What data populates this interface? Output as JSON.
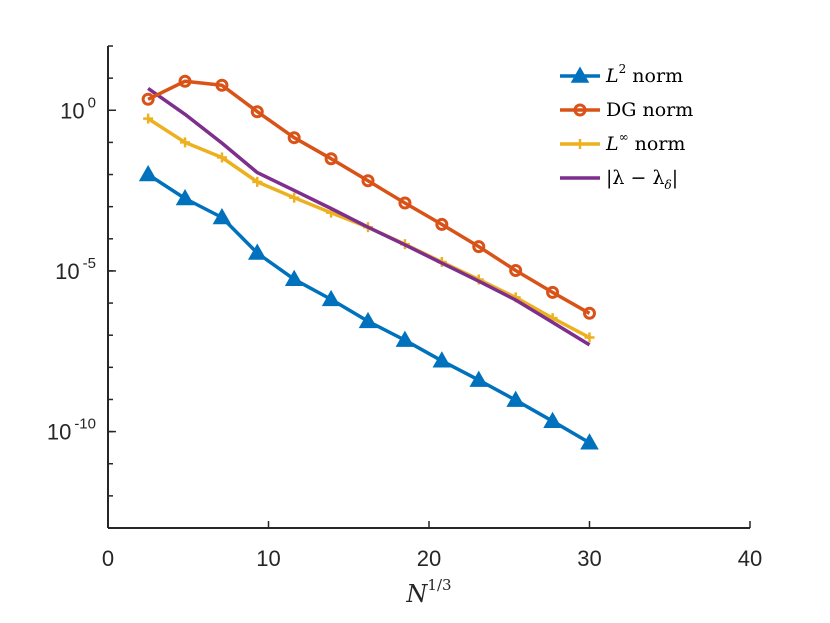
{
  "chart_data": {
    "type": "line",
    "xlabel": "N^{1/3}",
    "xlabel_parts": {
      "base": "N",
      "exponent": "1/3"
    },
    "ylabel": "",
    "yscale": "log",
    "xlim": [
      0,
      40
    ],
    "ylim": [
      1e-13,
      100.0
    ],
    "x_ticks": [
      0,
      10,
      20,
      30,
      40
    ],
    "y_ticks": [
      {
        "value": 1,
        "base": "10",
        "exponent": "0"
      },
      {
        "value": 1e-05,
        "base": "10",
        "exponent": "-5"
      },
      {
        "value": 1e-10,
        "base": "10",
        "exponent": "-10"
      }
    ],
    "grid": false,
    "legend_position": "top-right",
    "series": [
      {
        "name": "L^2 norm",
        "legend": {
          "base": "L",
          "exponent": "2",
          "suffix": " norm"
        },
        "color": "#0072BD",
        "marker": "triangle",
        "x": [
          2.5,
          4.8,
          7.1,
          9.3,
          11.6,
          13.9,
          16.2,
          18.5,
          20.8,
          23.1,
          25.4,
          27.7,
          30.0
        ],
        "y": [
          0.01,
          0.0018,
          0.00046,
          3.6e-05,
          5.5e-06,
          1.3e-06,
          2.7e-07,
          7e-08,
          1.6e-08,
          4e-09,
          9.5e-10,
          2.1e-10,
          4.5e-11
        ]
      },
      {
        "name": "DG norm",
        "legend": {
          "base": "DG",
          "exponent": "",
          "suffix": " norm"
        },
        "color": "#D95319",
        "marker": "circle",
        "x": [
          2.5,
          4.8,
          7.1,
          9.3,
          11.6,
          13.9,
          16.2,
          18.5,
          20.8,
          23.1,
          25.4,
          27.7,
          30.0
        ],
        "y": [
          2.2,
          8.0,
          6.0,
          0.9,
          0.14,
          0.031,
          0.0064,
          0.0013,
          0.00028,
          5.7e-05,
          1.03e-05,
          2.15e-06,
          4.8e-07
        ]
      },
      {
        "name": "L^inf norm",
        "legend": {
          "base": "L",
          "exponent": "∞",
          "suffix": " norm"
        },
        "color": "#EDB120",
        "marker": "plus",
        "x": [
          2.5,
          4.8,
          7.1,
          9.3,
          11.6,
          13.9,
          16.2,
          18.5,
          20.8,
          23.1,
          25.4,
          27.7,
          30.0
        ],
        "y": [
          0.55,
          0.1,
          0.034,
          0.0059,
          0.0019,
          0.00065,
          0.00023,
          6.8e-05,
          1.9e-05,
          5.4e-06,
          1.5e-06,
          3.4e-07,
          8.5e-08
        ]
      },
      {
        "name": "|lambda - lambda_delta|",
        "legend": {
          "base": "|λ − λ",
          "subscript": "δ",
          "suffix": "|"
        },
        "color": "#7E2F8E",
        "marker": "none",
        "x": [
          2.5,
          4.8,
          7.1,
          9.3,
          11.6,
          13.9,
          16.2,
          18.5,
          20.8,
          23.1,
          25.4,
          27.7,
          30.0
        ],
        "y": [
          4.8,
          0.75,
          0.095,
          0.0115,
          0.0032,
          0.00088,
          0.00023,
          6.5e-05,
          1.75e-05,
          4.8e-06,
          1.25e-06,
          2.5e-07,
          5e-08
        ]
      }
    ]
  }
}
